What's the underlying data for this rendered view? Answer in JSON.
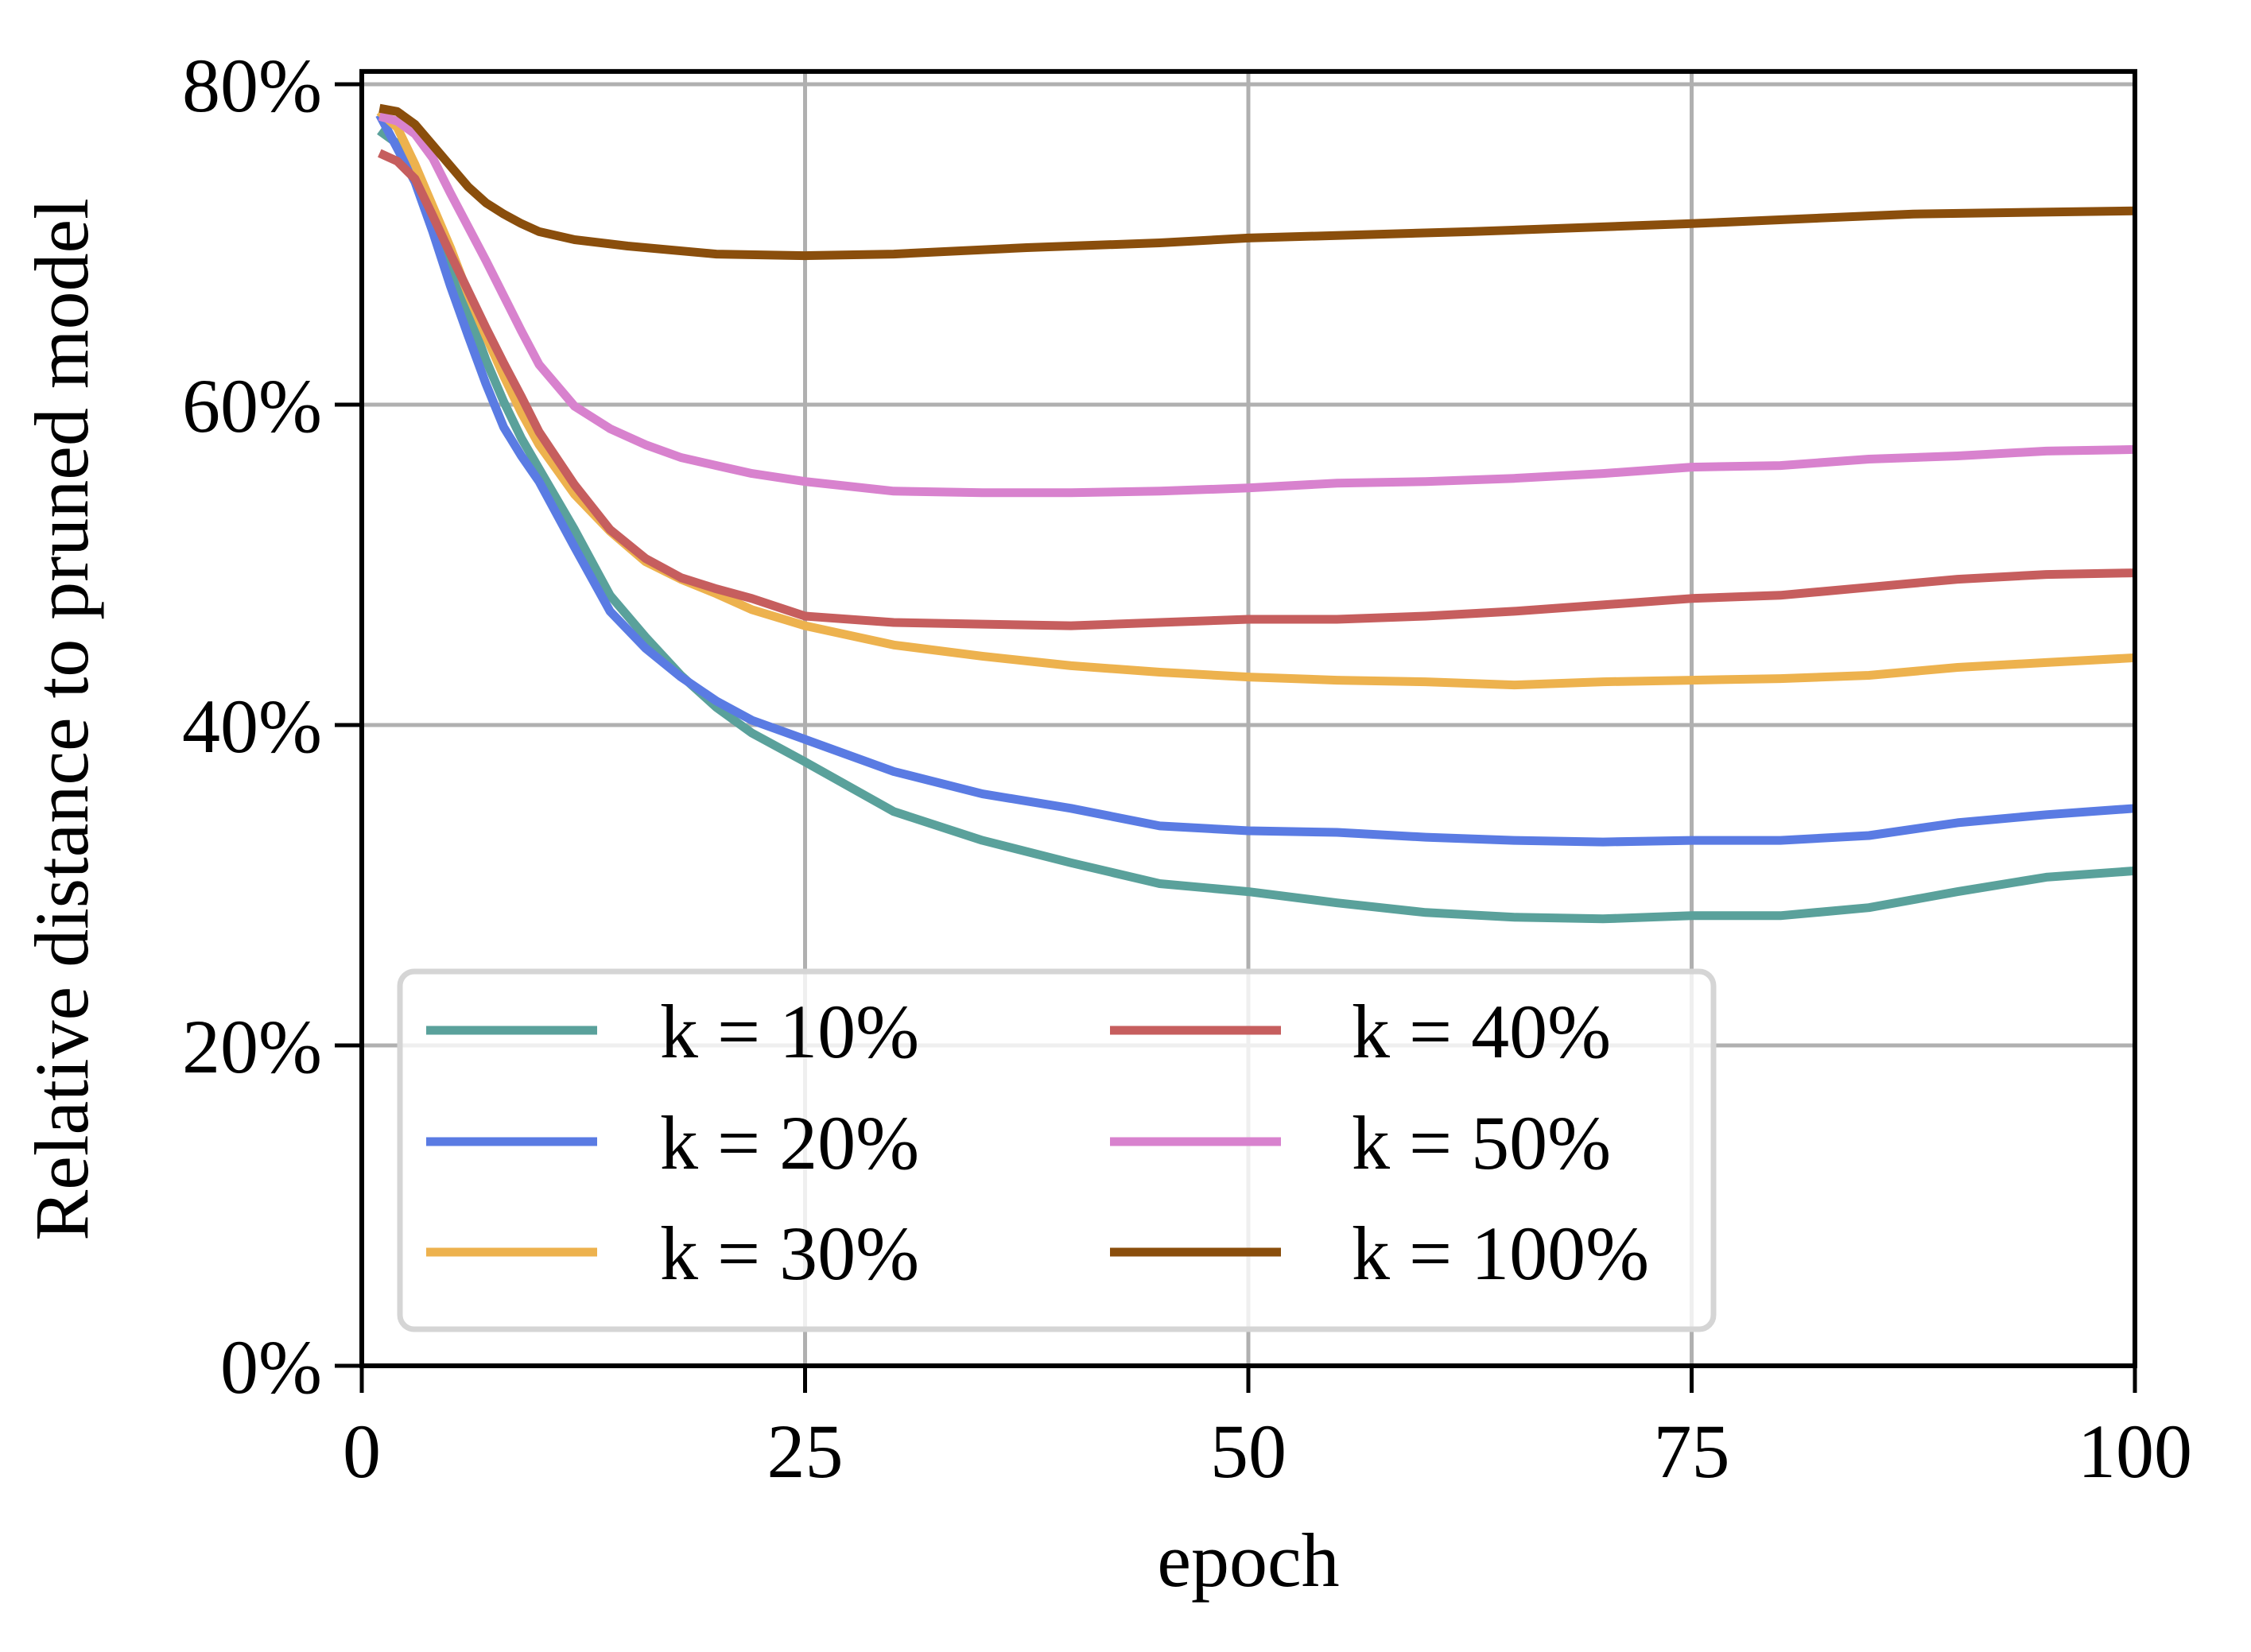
{
  "chart_data": {
    "type": "line",
    "title": "",
    "xlabel": "epoch",
    "ylabel": "Relative distance to pruned model",
    "xlim": [
      0,
      100
    ],
    "ylim": [
      0,
      80.8
    ],
    "xticks": [
      0,
      25,
      50,
      75,
      100
    ],
    "xtick_labels": [
      "0",
      "25",
      "50",
      "75",
      "100"
    ],
    "yticks": [
      0,
      20,
      40,
      60,
      80
    ],
    "ytick_labels": [
      "0%",
      "20%",
      "40%",
      "60%",
      "80%"
    ],
    "grid": true,
    "legend": {
      "placement": "lower-left",
      "columns": 2
    },
    "series": [
      {
        "name": "k = 10%",
        "color": "#5aa19b",
        "points": [
          [
            1,
            77.1
          ],
          [
            2,
            76.3
          ],
          [
            3,
            74.5
          ],
          [
            4,
            71.8
          ],
          [
            5,
            68.8
          ],
          [
            6,
            65.8
          ],
          [
            7,
            62.8
          ],
          [
            8,
            60.2
          ],
          [
            9,
            57.9
          ],
          [
            10,
            56.0
          ],
          [
            12,
            52.2
          ],
          [
            14,
            48.1
          ],
          [
            16,
            45.5
          ],
          [
            18,
            43.1
          ],
          [
            20,
            41.1
          ],
          [
            22,
            39.5
          ],
          [
            25,
            37.7
          ],
          [
            30,
            34.6
          ],
          [
            35,
            32.8
          ],
          [
            40,
            31.4
          ],
          [
            45,
            30.1
          ],
          [
            50,
            29.6
          ],
          [
            55,
            28.9
          ],
          [
            60,
            28.3
          ],
          [
            65,
            28.0
          ],
          [
            70,
            27.9
          ],
          [
            75,
            28.1
          ],
          [
            80,
            28.1
          ],
          [
            85,
            28.6
          ],
          [
            90,
            29.6
          ],
          [
            95,
            30.5
          ],
          [
            100,
            30.9
          ]
        ]
      },
      {
        "name": "k = 20%",
        "color": "#5a7be3",
        "points": [
          [
            1,
            78.1
          ],
          [
            2,
            76.0
          ],
          [
            3,
            73.9
          ],
          [
            4,
            70.8
          ],
          [
            5,
            67.4
          ],
          [
            6,
            64.3
          ],
          [
            7,
            61.3
          ],
          [
            8,
            58.6
          ],
          [
            9,
            56.8
          ],
          [
            10,
            55.2
          ],
          [
            12,
            51.1
          ],
          [
            14,
            47.1
          ],
          [
            16,
            44.8
          ],
          [
            18,
            43.0
          ],
          [
            20,
            41.5
          ],
          [
            22,
            40.3
          ],
          [
            25,
            39.1
          ],
          [
            30,
            37.1
          ],
          [
            35,
            35.7
          ],
          [
            40,
            34.8
          ],
          [
            45,
            33.7
          ],
          [
            50,
            33.4
          ],
          [
            55,
            33.3
          ],
          [
            60,
            33.0
          ],
          [
            65,
            32.8
          ],
          [
            70,
            32.7
          ],
          [
            75,
            32.8
          ],
          [
            80,
            32.8
          ],
          [
            85,
            33.1
          ],
          [
            90,
            33.9
          ],
          [
            95,
            34.4
          ],
          [
            100,
            34.8
          ]
        ]
      },
      {
        "name": "k = 30%",
        "color": "#edb24e",
        "points": [
          [
            1,
            78.3
          ],
          [
            2,
            77.3
          ],
          [
            3,
            75.0
          ],
          [
            4,
            72.4
          ],
          [
            5,
            69.8
          ],
          [
            6,
            66.9
          ],
          [
            7,
            64.3
          ],
          [
            8,
            61.8
          ],
          [
            9,
            59.5
          ],
          [
            10,
            57.5
          ],
          [
            12,
            54.4
          ],
          [
            14,
            52.1
          ],
          [
            16,
            50.2
          ],
          [
            18,
            49.1
          ],
          [
            20,
            48.2
          ],
          [
            22,
            47.2
          ],
          [
            25,
            46.2
          ],
          [
            30,
            45.0
          ],
          [
            35,
            44.3
          ],
          [
            40,
            43.7
          ],
          [
            45,
            43.3
          ],
          [
            50,
            43.0
          ],
          [
            55,
            42.8
          ],
          [
            60,
            42.7
          ],
          [
            65,
            42.5
          ],
          [
            70,
            42.7
          ],
          [
            75,
            42.8
          ],
          [
            80,
            42.9
          ],
          [
            85,
            43.1
          ],
          [
            90,
            43.6
          ],
          [
            95,
            43.9
          ],
          [
            100,
            44.2
          ]
        ]
      },
      {
        "name": "k = 40%",
        "color": "#c65e5e",
        "points": [
          [
            1,
            75.7
          ],
          [
            2,
            75.2
          ],
          [
            3,
            74.1
          ],
          [
            4,
            71.8
          ],
          [
            5,
            69.4
          ],
          [
            6,
            67.1
          ],
          [
            7,
            64.8
          ],
          [
            8,
            62.6
          ],
          [
            9,
            60.5
          ],
          [
            10,
            58.3
          ],
          [
            12,
            55.0
          ],
          [
            14,
            52.2
          ],
          [
            16,
            50.4
          ],
          [
            18,
            49.2
          ],
          [
            20,
            48.5
          ],
          [
            22,
            47.9
          ],
          [
            25,
            46.8
          ],
          [
            30,
            46.4
          ],
          [
            35,
            46.3
          ],
          [
            40,
            46.2
          ],
          [
            45,
            46.4
          ],
          [
            50,
            46.6
          ],
          [
            55,
            46.6
          ],
          [
            60,
            46.8
          ],
          [
            65,
            47.1
          ],
          [
            70,
            47.5
          ],
          [
            75,
            47.9
          ],
          [
            80,
            48.1
          ],
          [
            85,
            48.6
          ],
          [
            90,
            49.1
          ],
          [
            95,
            49.4
          ],
          [
            100,
            49.5
          ]
        ]
      },
      {
        "name": "k = 50%",
        "color": "#d882ce",
        "points": [
          [
            1,
            78.0
          ],
          [
            2,
            77.7
          ],
          [
            3,
            76.9
          ],
          [
            4,
            75.4
          ],
          [
            5,
            73.2
          ],
          [
            6,
            71.1
          ],
          [
            7,
            69.0
          ],
          [
            8,
            66.8
          ],
          [
            9,
            64.6
          ],
          [
            10,
            62.5
          ],
          [
            12,
            59.9
          ],
          [
            14,
            58.5
          ],
          [
            16,
            57.5
          ],
          [
            18,
            56.7
          ],
          [
            20,
            56.2
          ],
          [
            22,
            55.7
          ],
          [
            25,
            55.2
          ],
          [
            30,
            54.6
          ],
          [
            35,
            54.5
          ],
          [
            40,
            54.5
          ],
          [
            45,
            54.6
          ],
          [
            50,
            54.8
          ],
          [
            55,
            55.1
          ],
          [
            60,
            55.2
          ],
          [
            65,
            55.4
          ],
          [
            70,
            55.7
          ],
          [
            75,
            56.1
          ],
          [
            80,
            56.2
          ],
          [
            85,
            56.6
          ],
          [
            90,
            56.8
          ],
          [
            95,
            57.1
          ],
          [
            100,
            57.2
          ]
        ]
      },
      {
        "name": "k = 100%",
        "color": "#8a4e0c",
        "points": [
          [
            1,
            78.5
          ],
          [
            2,
            78.3
          ],
          [
            3,
            77.5
          ],
          [
            4,
            76.2
          ],
          [
            5,
            74.9
          ],
          [
            6,
            73.6
          ],
          [
            7,
            72.6
          ],
          [
            8,
            71.9
          ],
          [
            9,
            71.3
          ],
          [
            10,
            70.8
          ],
          [
            12,
            70.3
          ],
          [
            15,
            69.9
          ],
          [
            20,
            69.4
          ],
          [
            25,
            69.3
          ],
          [
            30,
            69.4
          ],
          [
            37.5,
            69.8
          ],
          [
            45,
            70.1
          ],
          [
            50,
            70.4
          ],
          [
            62.5,
            70.8
          ],
          [
            75,
            71.3
          ],
          [
            87.5,
            71.9
          ],
          [
            100,
            72.1
          ]
        ]
      }
    ]
  }
}
